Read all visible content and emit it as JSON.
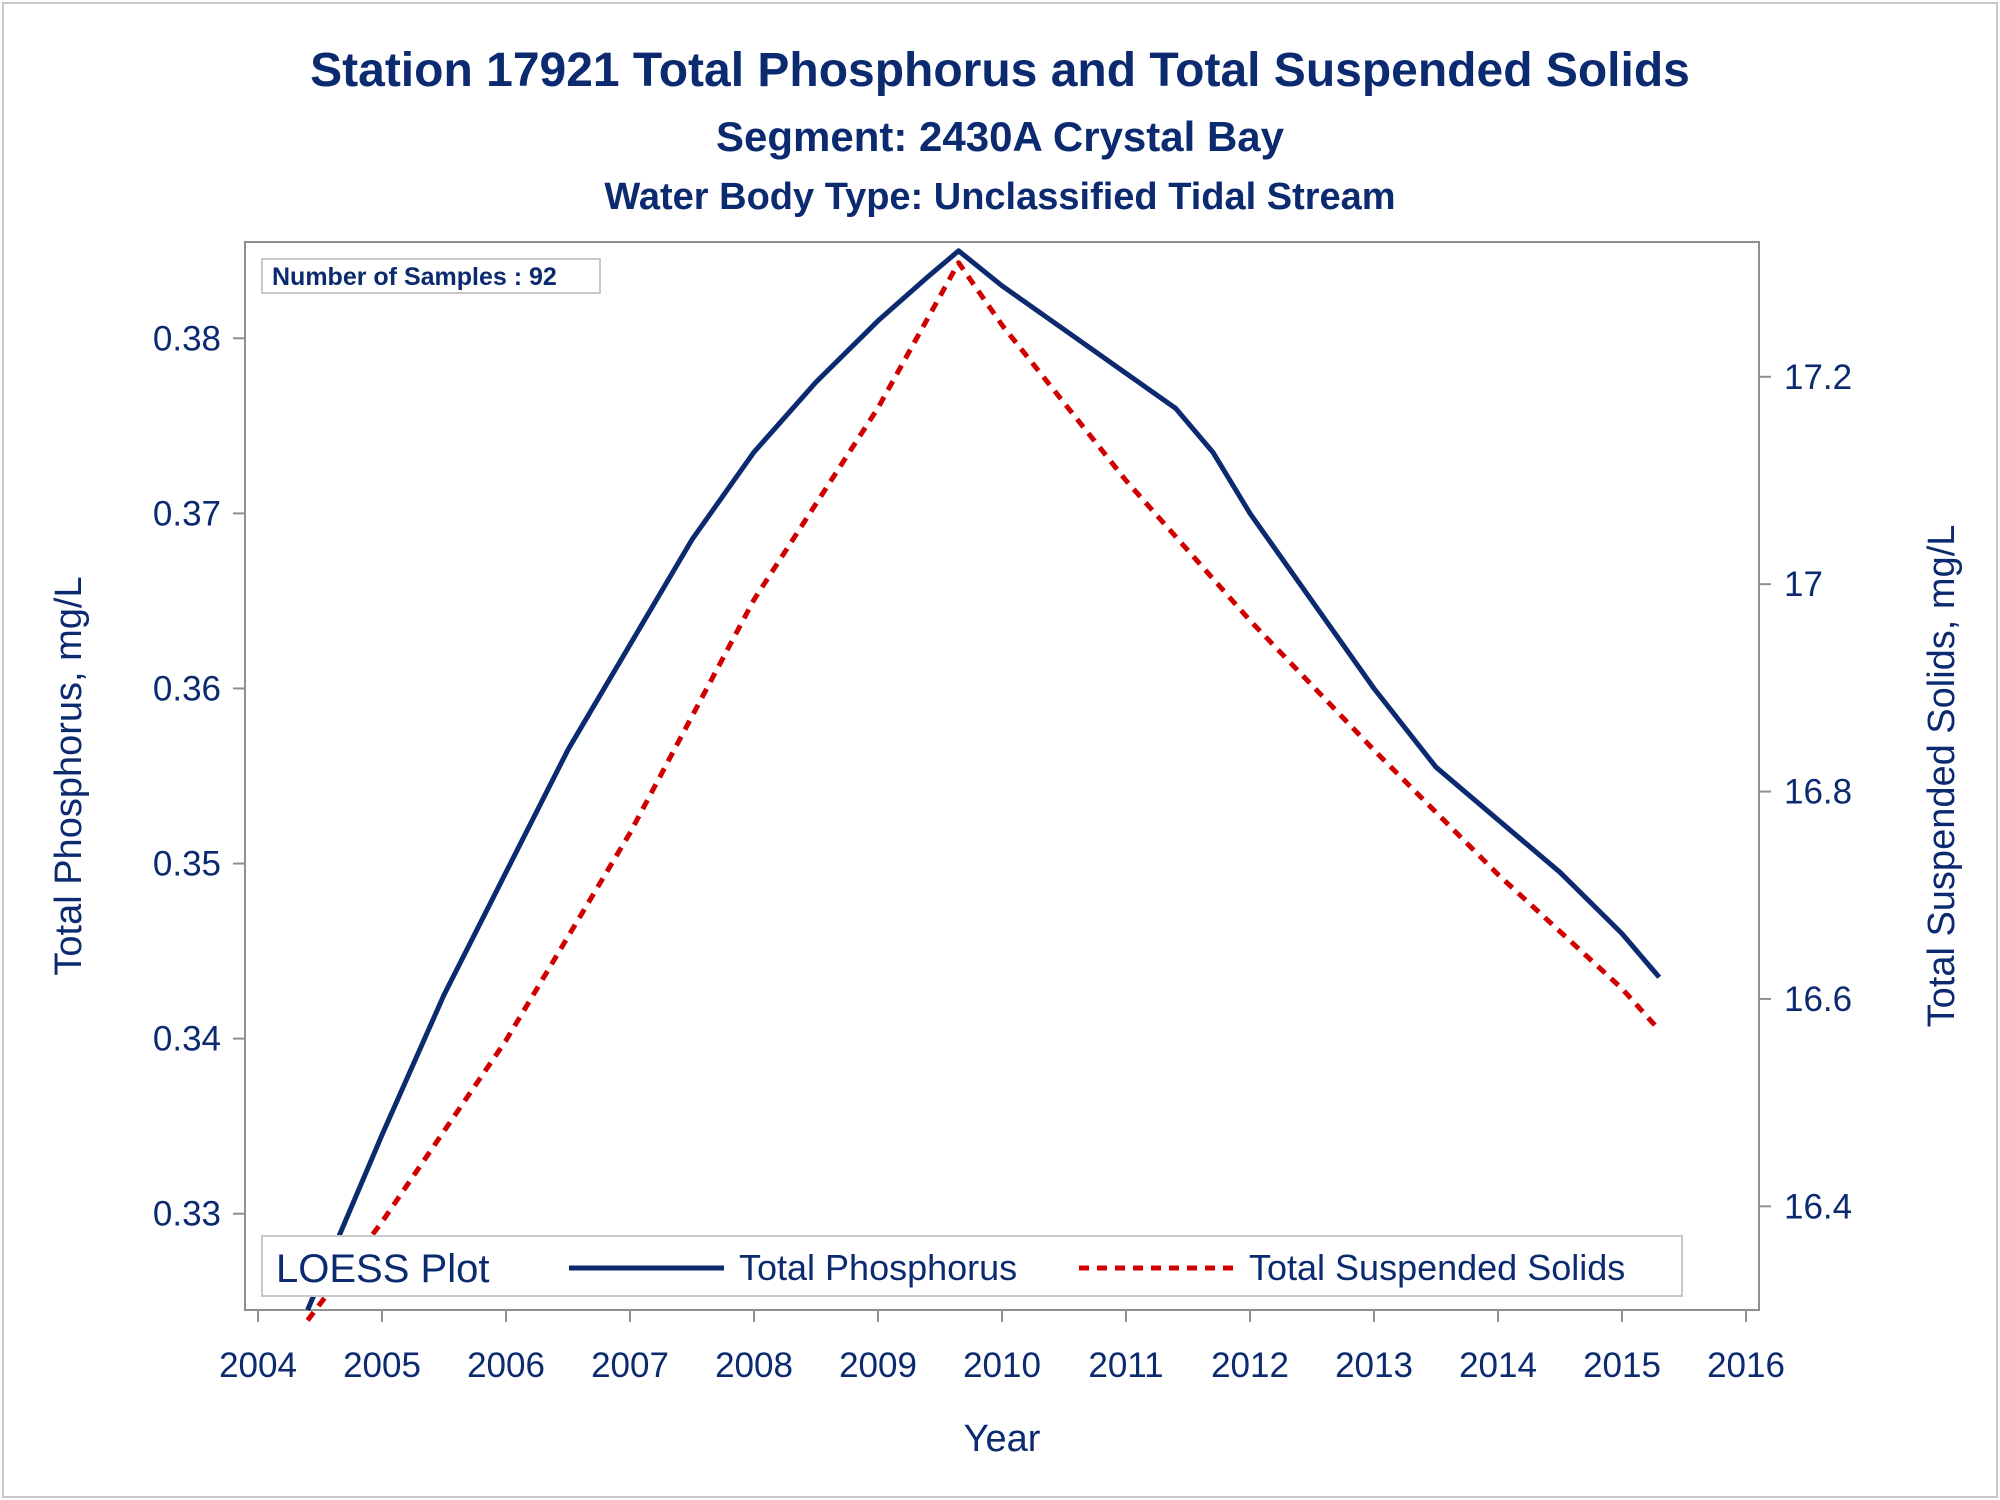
{
  "chart_data": {
    "type": "line",
    "title": "Station 17921  Total Phosphorus and Total Suspended Solids",
    "subtitle": "Segment: 2430A  Crystal Bay",
    "subtitle2": "Water Body Type: Unclassified Tidal Stream",
    "annotation": "Number of Samples : 92",
    "xlabel": "Year",
    "ylabel_left": "Total Phosphorus, mg/L",
    "ylabel_right": "Total Suspended Solids, mg/L",
    "xlim": [
      2004,
      2016
    ],
    "ylim_left": [
      0.3245,
      0.3855
    ],
    "ylim_right": [
      16.3,
      17.33
    ],
    "x_ticks": [
      2004,
      2005,
      2006,
      2007,
      2008,
      2009,
      2010,
      2011,
      2012,
      2013,
      2014,
      2015,
      2016
    ],
    "x_tick_labels": [
      "2004",
      "2005",
      "2006",
      "2007",
      "2008",
      "2009",
      "2010",
      "2011",
      "2012",
      "2013",
      "2014",
      "2015",
      "2016"
    ],
    "y_left_ticks": [
      0.33,
      0.34,
      0.35,
      0.36,
      0.37,
      0.38
    ],
    "y_left_tick_labels": [
      "0.33",
      "0.34",
      "0.35",
      "0.36",
      "0.37",
      "0.38"
    ],
    "y_right_ticks": [
      16.4,
      16.6,
      16.8,
      17.0,
      17.2
    ],
    "y_right_tick_labels": [
      "16.4",
      "16.6",
      "16.8",
      "17",
      "17.2"
    ],
    "grid": false,
    "legend_title": "LOESS Plot",
    "legend_position": "bottom-inside",
    "series": [
      {
        "name": "Total Phosphorus",
        "axis": "left",
        "color": "#0b2a6f",
        "style": "solid",
        "x": [
          2004.4,
          2004.7,
          2005.0,
          2005.5,
          2006.0,
          2006.5,
          2007.0,
          2007.5,
          2008.0,
          2008.5,
          2009.0,
          2009.4,
          2009.65,
          2010.0,
          2010.5,
          2011.0,
          2011.4,
          2011.7,
          2012.0,
          2012.5,
          2013.0,
          2013.5,
          2014.0,
          2014.5,
          2015.0,
          2015.3
        ],
        "y": [
          0.3245,
          0.3295,
          0.3345,
          0.3425,
          0.3495,
          0.3565,
          0.3625,
          0.3685,
          0.3735,
          0.3775,
          0.381,
          0.3835,
          0.385,
          0.383,
          0.3805,
          0.378,
          0.376,
          0.3735,
          0.37,
          0.365,
          0.36,
          0.3555,
          0.3525,
          0.3495,
          0.346,
          0.3435
        ]
      },
      {
        "name": "Total Suspended Solids",
        "axis": "right",
        "color": "#d00000",
        "style": "dashed",
        "x": [
          2004.4,
          2005.0,
          2006.0,
          2007.0,
          2008.0,
          2009.0,
          2009.65,
          2010.0,
          2011.0,
          2012.0,
          2013.0,
          2014.0,
          2015.0,
          2015.3
        ],
        "y": [
          16.29,
          16.385,
          16.56,
          16.76,
          16.985,
          17.17,
          17.31,
          17.25,
          17.1,
          16.965,
          16.84,
          16.72,
          16.61,
          16.57
        ]
      }
    ]
  }
}
